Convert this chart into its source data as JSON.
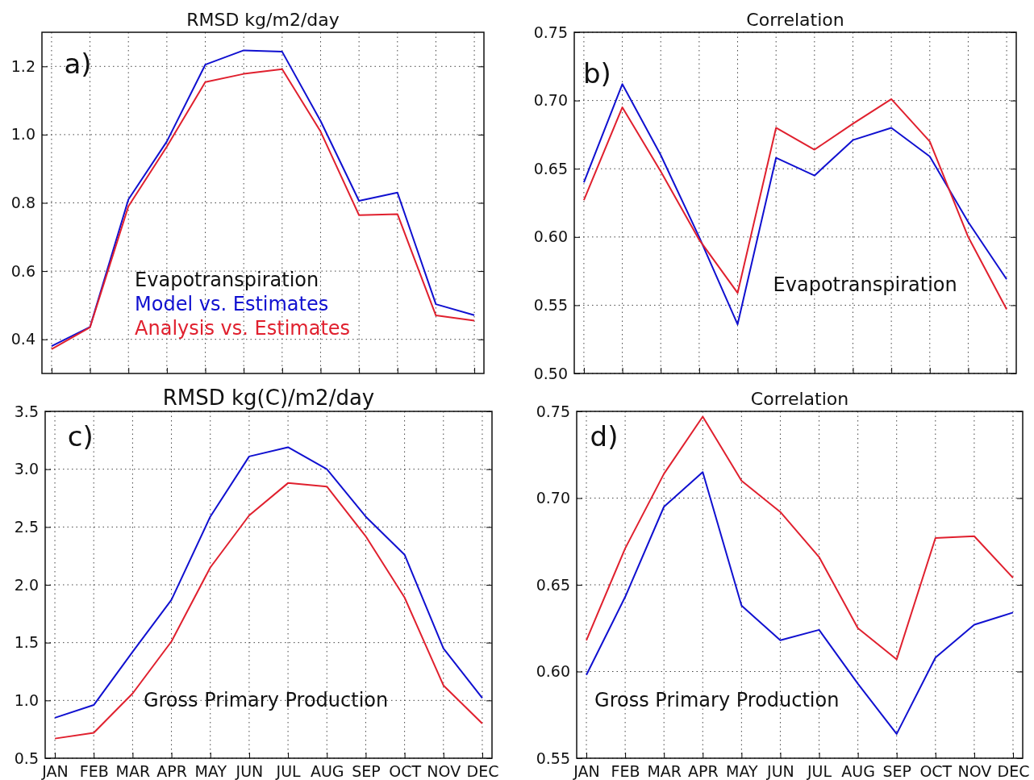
{
  "chart_data": [
    {
      "type": "line",
      "title": "RMSD kg/m2/day",
      "categories": [
        null,
        null,
        null,
        null,
        null,
        null,
        null,
        null,
        null,
        null,
        null,
        null
      ],
      "ylim": [
        0.3,
        1.3
      ],
      "yticks": [
        0.4,
        0.6,
        0.8,
        {
          "value": 1,
          "label": "1.0"
        },
        1.2
      ],
      "grid": true,
      "legend": "bottom",
      "tick_labels": "y",
      "annotations": [
        "a)",
        "Evapotranspiration"
      ],
      "series": [
        {
          "name": "Model vs. Estimates",
          "color": "#1010d0",
          "values": [
            0.38,
            0.436,
            0.81,
            0.98,
            1.205,
            1.247,
            1.243,
            1.04,
            0.806,
            0.83,
            0.503,
            0.471
          ]
        },
        {
          "name": "Analysis vs. Estimates",
          "color": "#e0202e",
          "values": [
            0.371,
            0.435,
            0.79,
            0.965,
            1.154,
            1.178,
            1.192,
            1.009,
            0.764,
            0.767,
            0.47,
            0.455
          ]
        }
      ]
    },
    {
      "type": "line",
      "title": "Correlation",
      "categories": [
        null,
        null,
        null,
        null,
        null,
        null,
        null,
        null,
        null,
        null,
        null,
        null
      ],
      "ylim": [
        0.5,
        0.75
      ],
      "yticks": [
        {
          "value": 0.5,
          "label": "0.50"
        },
        {
          "value": 0.55,
          "label": "0.55"
        },
        {
          "value": 0.6,
          "label": "0.60"
        },
        {
          "value": 0.65,
          "label": "0.65"
        },
        {
          "value": 0.7,
          "label": "0.70"
        },
        {
          "value": 0.75,
          "label": "0.75"
        }
      ],
      "grid": true,
      "tick_labels": "y",
      "annotations": [
        "b)",
        "Evapotranspiration"
      ],
      "series": [
        {
          "color": "#1010d0",
          "values": [
            0.64,
            0.712,
            0.66,
            0.6,
            0.536,
            0.658,
            0.645,
            0.671,
            0.68,
            0.659,
            0.611,
            0.569
          ]
        },
        {
          "color": "#e0202e",
          "values": [
            0.627,
            0.695,
            0.648,
            0.598,
            0.559,
            0.68,
            0.664,
            0.683,
            0.701,
            0.67,
            0.6,
            0.547
          ]
        }
      ]
    },
    {
      "type": "line",
      "title": "RMSD kg(C)/m2/day",
      "categories": [
        "JAN",
        "FEB",
        "MAR",
        "APR",
        "MAY",
        "JUN",
        "JUL",
        "AUG",
        "SEP",
        "OCT",
        "NOV",
        "DEC"
      ],
      "ylim": [
        0.5,
        3.5
      ],
      "yticks": [
        0.5,
        {
          "value": 1,
          "label": "1.0"
        },
        1.5,
        {
          "value": 2,
          "label": "2.0"
        },
        2.5,
        {
          "value": 3,
          "label": "3.0"
        },
        3.5
      ],
      "grid": true,
      "annotations": [
        "c)",
        "Gross Primary Production"
      ],
      "series": [
        {
          "color": "#1010d0",
          "values": [
            0.85,
            0.96,
            1.42,
            1.87,
            2.59,
            3.11,
            3.19,
            3.0,
            2.59,
            2.26,
            1.45,
            1.02
          ]
        },
        {
          "color": "#e0202e",
          "values": [
            0.67,
            0.72,
            1.06,
            1.51,
            2.15,
            2.6,
            2.88,
            2.85,
            2.42,
            1.89,
            1.13,
            0.8
          ]
        }
      ]
    },
    {
      "type": "line",
      "title": "Correlation",
      "categories": [
        "JAN",
        "FEB",
        "MAR",
        "APR",
        "MAY",
        "JUN",
        "JUL",
        "AUG",
        "SEP",
        "OCT",
        "NOV",
        "DEC"
      ],
      "ylim": [
        0.55,
        0.75
      ],
      "yticks": [
        {
          "value": 0.55,
          "label": "0.55"
        },
        {
          "value": 0.6,
          "label": "0.60"
        },
        {
          "value": 0.65,
          "label": "0.65"
        },
        {
          "value": 0.7,
          "label": "0.70"
        },
        {
          "value": 0.75,
          "label": "0.75"
        }
      ],
      "grid": true,
      "annotations": [
        "d)",
        "Gross Primary Production"
      ],
      "series": [
        {
          "color": "#1010d0",
          "values": [
            0.598,
            0.643,
            0.695,
            0.715,
            0.638,
            0.618,
            0.624,
            0.593,
            0.564,
            0.608,
            0.627,
            0.634
          ]
        },
        {
          "color": "#e0202e",
          "values": [
            0.618,
            0.671,
            0.714,
            0.747,
            0.71,
            0.692,
            0.666,
            0.625,
            0.607,
            0.677,
            0.678,
            0.654
          ]
        }
      ]
    }
  ]
}
